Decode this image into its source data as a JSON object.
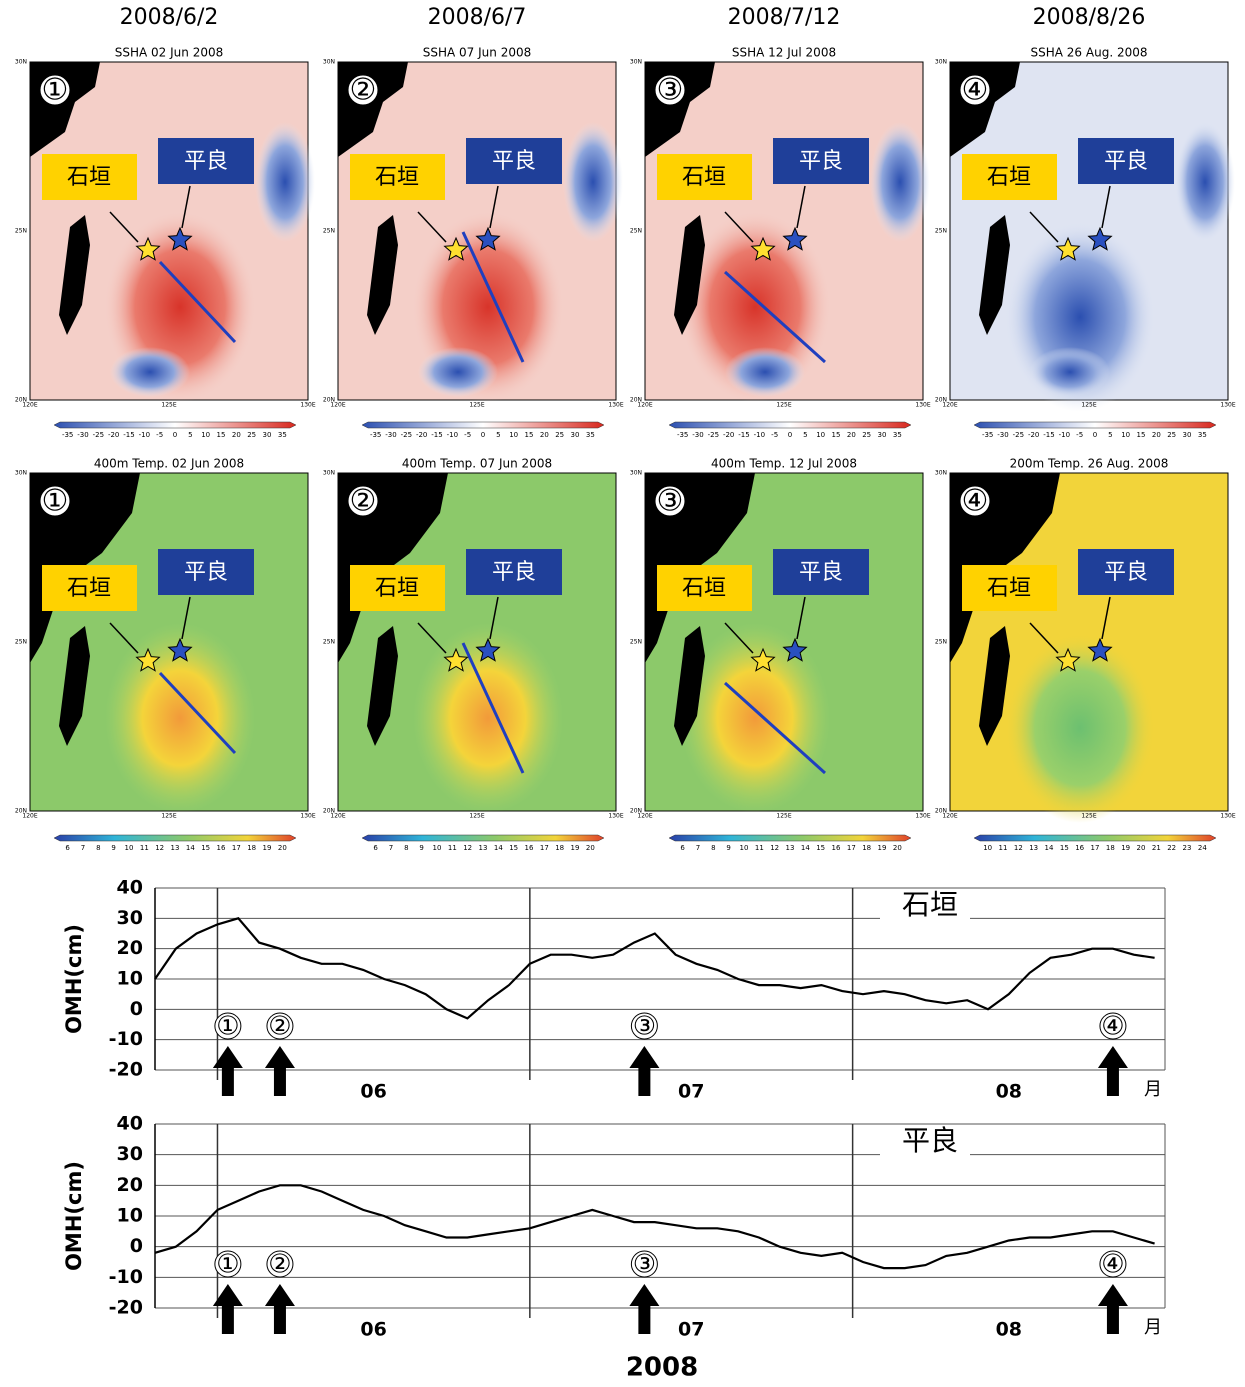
{
  "dates": [
    "2008/6/2",
    "2008/6/7",
    "2008/7/12",
    "2008/8/26"
  ],
  "ssha_maps": [
    {
      "title": "SSHA 02 Jun 2008",
      "number": "①"
    },
    {
      "title": "SSHA 07 Jun 2008",
      "number": "②"
    },
    {
      "title": "SSHA 12 Jul 2008",
      "number": "③"
    },
    {
      "title": "SSHA 26 Aug. 2008",
      "number": "④"
    }
  ],
  "temp_maps": [
    {
      "title": "400m Temp. 02 Jun 2008",
      "number": "①"
    },
    {
      "title": "400m Temp. 07 Jun 2008",
      "number": "②"
    },
    {
      "title": "400m Temp. 12 Jul 2008",
      "number": "③"
    },
    {
      "title": "200m Temp. 26 Aug. 2008",
      "number": "④"
    }
  ],
  "station_labels": {
    "ishigaki": "石垣",
    "hirara": "平良"
  },
  "map_axes": {
    "lat": [
      "30N",
      "25N",
      "20N"
    ],
    "lon": [
      "120E",
      "125E",
      "130E"
    ]
  },
  "ssha_colorbar": [
    -35,
    -30,
    -25,
    -20,
    -15,
    -10,
    -5,
    0,
    5,
    10,
    15,
    20,
    25,
    30,
    35
  ],
  "temp400_colorbar": [
    6,
    7,
    8,
    9,
    10,
    11,
    12,
    13,
    14,
    15,
    16,
    17,
    18,
    19,
    20
  ],
  "temp200_colorbar": [
    10,
    11,
    12,
    13,
    14,
    15,
    16,
    17,
    18,
    19,
    20,
    21,
    22,
    23,
    24
  ],
  "chart_data": [
    {
      "type": "line",
      "title": "石垣",
      "ylabel": "OMH(cm)",
      "color": "#000000",
      "month_labels": [
        "06",
        "07",
        "08"
      ],
      "month_unit": "月",
      "annotations": [
        "①",
        "②",
        "③",
        "④"
      ],
      "values": [
        10,
        20,
        25,
        28,
        30,
        22,
        20,
        17,
        15,
        15,
        13,
        10,
        8,
        5,
        0,
        -3,
        3,
        8,
        15,
        18,
        18,
        17,
        18,
        22,
        25,
        18,
        15,
        13,
        10,
        8,
        8,
        7,
        8,
        6,
        5,
        6,
        5,
        3,
        2,
        3,
        0,
        5,
        12,
        17,
        18,
        20,
        20,
        18,
        17
      ],
      "ylim": [
        -20,
        40
      ],
      "yticks": [
        -20,
        -10,
        0,
        10,
        20,
        30,
        40
      ],
      "grid": true
    },
    {
      "type": "line",
      "title": "平良",
      "ylabel": "OMH(cm)",
      "xlabel": "2008",
      "color": "#000000",
      "month_labels": [
        "06",
        "07",
        "08"
      ],
      "month_unit": "月",
      "annotations": [
        "①",
        "②",
        "③",
        "④"
      ],
      "values": [
        -2,
        0,
        5,
        12,
        15,
        18,
        20,
        20,
        18,
        15,
        12,
        10,
        7,
        5,
        3,
        3,
        4,
        5,
        6,
        8,
        10,
        12,
        10,
        8,
        8,
        7,
        6,
        6,
        5,
        3,
        0,
        -2,
        -3,
        -2,
        -5,
        -7,
        -7,
        -6,
        -3,
        -2,
        0,
        2,
        3,
        3,
        4,
        5,
        5,
        3,
        1
      ],
      "ylim": [
        -20,
        40
      ],
      "yticks": [
        -20,
        -10,
        0,
        10,
        20,
        30,
        40
      ],
      "grid": true
    }
  ]
}
